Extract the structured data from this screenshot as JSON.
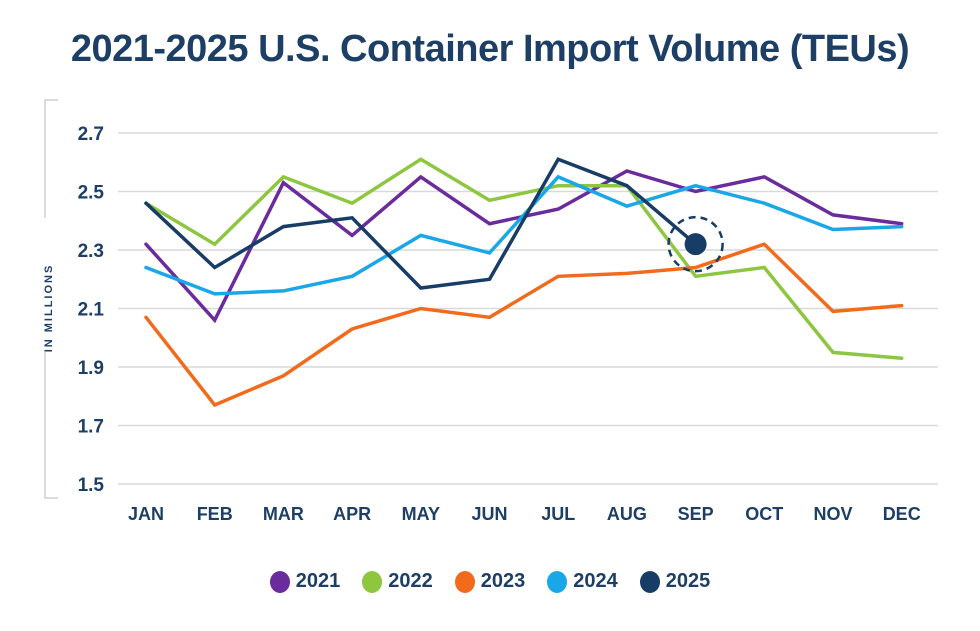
{
  "chart_data": {
    "type": "line",
    "title": "2021-2025 U.S. Container Import Volume (TEUs)",
    "xlabel": "",
    "ylabel": "IN MILLIONS",
    "categories": [
      "JAN",
      "FEB",
      "MAR",
      "APR",
      "MAY",
      "JUN",
      "JUL",
      "AUG",
      "SEP",
      "OCT",
      "NOV",
      "DEC"
    ],
    "yticks": [
      "2.7",
      "2.5",
      "2.3",
      "2.1",
      "1.9",
      "1.7",
      "1.5"
    ],
    "ylim": [
      1.5,
      2.7
    ],
    "grid": true,
    "legend_position": "bottom-center",
    "series": [
      {
        "name": "2021",
        "color": "#6a2c9c",
        "values": [
          2.32,
          2.06,
          2.53,
          2.35,
          2.55,
          2.39,
          2.44,
          2.57,
          2.5,
          2.55,
          2.42,
          2.39
        ]
      },
      {
        "name": "2022",
        "color": "#8dc63f",
        "values": [
          2.46,
          2.32,
          2.55,
          2.46,
          2.61,
          2.47,
          2.52,
          2.52,
          2.21,
          2.24,
          1.95,
          1.93
        ]
      },
      {
        "name": "2023",
        "color": "#f26b1d",
        "values": [
          2.07,
          1.77,
          1.87,
          2.03,
          2.1,
          2.07,
          2.21,
          2.22,
          2.24,
          2.32,
          2.09,
          2.11
        ]
      },
      {
        "name": "2024",
        "color": "#1aa7e8",
        "values": [
          2.24,
          2.15,
          2.16,
          2.21,
          2.35,
          2.29,
          2.55,
          2.45,
          2.52,
          2.46,
          2.37,
          2.38
        ]
      },
      {
        "name": "2025",
        "color": "#173d66",
        "values": [
          2.46,
          2.24,
          2.38,
          2.41,
          2.17,
          2.2,
          2.61,
          2.52,
          2.32,
          null,
          null,
          null
        ]
      }
    ],
    "annotations": [
      {
        "type": "highlight-marker",
        "series": "2025",
        "category": "SEP",
        "value": 2.32,
        "style": "dot-with-dashed-circle"
      }
    ]
  },
  "colors": {
    "title": "#1d3f66",
    "grid": "#d9d9d9",
    "axis_text": "#1d3f66"
  }
}
